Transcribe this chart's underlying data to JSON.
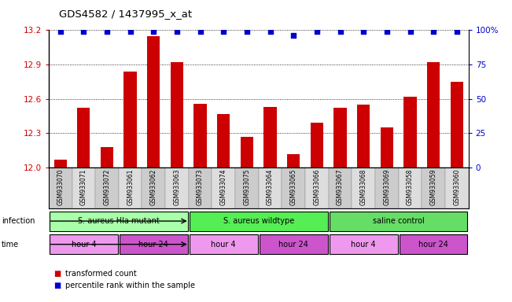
{
  "title": "GDS4582 / 1437995_x_at",
  "samples": [
    "GSM933070",
    "GSM933071",
    "GSM933072",
    "GSM933061",
    "GSM933062",
    "GSM933063",
    "GSM933073",
    "GSM933074",
    "GSM933075",
    "GSM933064",
    "GSM933065",
    "GSM933066",
    "GSM933067",
    "GSM933068",
    "GSM933069",
    "GSM933058",
    "GSM933059",
    "GSM933060"
  ],
  "bar_values": [
    12.07,
    12.52,
    12.18,
    12.84,
    13.15,
    12.92,
    12.56,
    12.47,
    12.27,
    12.53,
    12.12,
    12.39,
    12.52,
    12.55,
    12.35,
    12.62,
    12.92,
    12.75
  ],
  "percentile_values": [
    99,
    99,
    99,
    99,
    99,
    99,
    99,
    99,
    99,
    99,
    96,
    99,
    99,
    99,
    99,
    99,
    99,
    99
  ],
  "ylim_left": [
    12.0,
    13.2
  ],
  "ylim_right": [
    0,
    100
  ],
  "yticks_left": [
    12.0,
    12.3,
    12.6,
    12.9,
    13.2
  ],
  "yticks_right": [
    0,
    25,
    50,
    75,
    100
  ],
  "bar_color": "#cc0000",
  "percentile_color": "#0000cc",
  "grid_color": "#000000",
  "infection_groups": [
    {
      "label": "S. aureus Hla mutant",
      "start": 0,
      "end": 6,
      "color": "#aaffaa"
    },
    {
      "label": "S. aureus wildtype",
      "start": 6,
      "end": 12,
      "color": "#55ee55"
    },
    {
      "label": "saline control",
      "start": 12,
      "end": 18,
      "color": "#66dd66"
    }
  ],
  "time_groups": [
    {
      "label": "hour 4",
      "start": 0,
      "end": 3,
      "color": "#ee99ee"
    },
    {
      "label": "hour 24",
      "start": 3,
      "end": 6,
      "color": "#cc55cc"
    },
    {
      "label": "hour 4",
      "start": 6,
      "end": 9,
      "color": "#ee99ee"
    },
    {
      "label": "hour 24",
      "start": 9,
      "end": 12,
      "color": "#cc55cc"
    },
    {
      "label": "hour 4",
      "start": 12,
      "end": 15,
      "color": "#ee99ee"
    },
    {
      "label": "hour 24",
      "start": 15,
      "end": 18,
      "color": "#cc55cc"
    }
  ],
  "infection_label": "infection",
  "time_label": "time",
  "legend_bar_label": "transformed count",
  "legend_pct_label": "percentile rank within the sample",
  "background_color": "#ffffff",
  "tick_label_color_left": "#cc0000",
  "tick_label_color_right": "#0000cc",
  "bar_width": 0.55,
  "percentile_marker_size": 5,
  "sample_label_colors": [
    "#cccccc",
    "#dddddd"
  ]
}
